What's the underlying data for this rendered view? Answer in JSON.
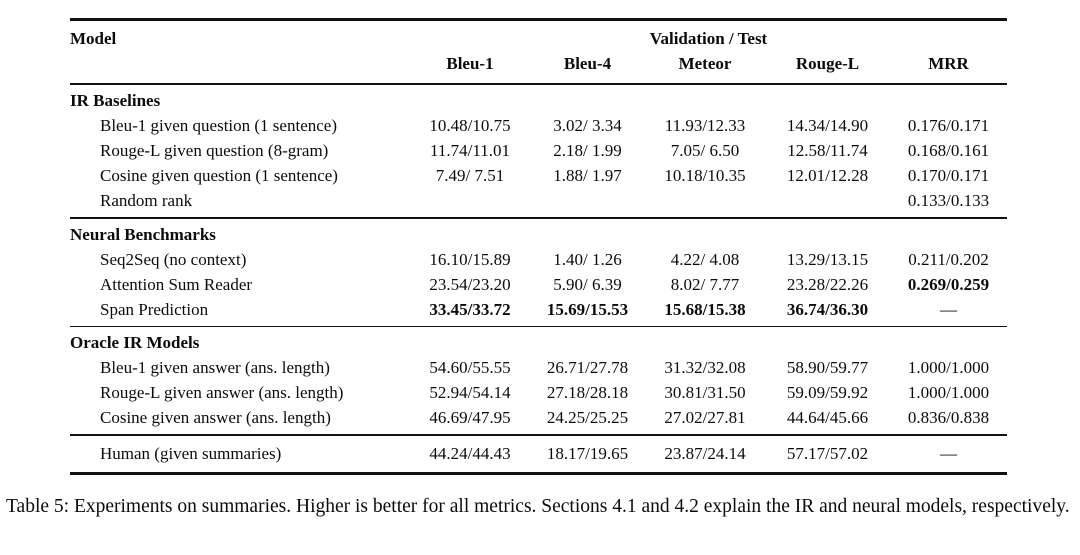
{
  "table": {
    "header": {
      "model_label": "Model",
      "group_label": "Validation / Test",
      "metrics": [
        "Bleu-1",
        "Bleu-4",
        "Meteor",
        "Rouge-L",
        "MRR"
      ]
    },
    "sections": [
      {
        "title": "IR Baselines",
        "rows": [
          {
            "model": "Bleu-1 given question (1 sentence)",
            "values": [
              "10.48/10.75",
              "3.02/ 3.34",
              "11.93/12.33",
              "14.34/14.90",
              "0.176/0.171"
            ]
          },
          {
            "model": "Rouge-L given question (8-gram)",
            "values": [
              "11.74/11.01",
              "2.18/ 1.99",
              "7.05/ 6.50",
              "12.58/11.74",
              "0.168/0.161"
            ]
          },
          {
            "model": "Cosine given question (1 sentence)",
            "values": [
              "7.49/ 7.51",
              "1.88/ 1.97",
              "10.18/10.35",
              "12.01/12.28",
              "0.170/0.171"
            ]
          },
          {
            "model": "Random rank",
            "values": [
              "",
              "",
              "",
              "",
              "0.133/0.133"
            ]
          }
        ]
      },
      {
        "title": "Neural Benchmarks",
        "rows": [
          {
            "model": "Seq2Seq (no context)",
            "values": [
              "16.10/15.89",
              "1.40/ 1.26",
              "4.22/ 4.08",
              "13.29/13.15",
              "0.211/0.202"
            ]
          },
          {
            "model": "Attention Sum Reader",
            "values": [
              "23.54/23.20",
              "5.90/ 6.39",
              "8.02/ 7.77",
              "23.28/22.26",
              "0.269/0.259"
            ]
          },
          {
            "model": "Span Prediction",
            "values": [
              "33.45/33.72",
              "15.69/15.53",
              "15.68/15.38",
              "36.74/36.30",
              "—"
            ]
          }
        ]
      },
      {
        "title": "Oracle IR Models",
        "rows": [
          {
            "model": "Bleu-1 given answer (ans. length)",
            "values": [
              "54.60/55.55",
              "26.71/27.78",
              "31.32/32.08",
              "58.90/59.77",
              "1.000/1.000"
            ]
          },
          {
            "model": "Rouge-L given answer (ans. length)",
            "values": [
              "52.94/54.14",
              "27.18/28.18",
              "30.81/31.50",
              "59.09/59.92",
              "1.000/1.000"
            ]
          },
          {
            "model": "Cosine given answer (ans. length)",
            "values": [
              "46.69/47.95",
              "24.25/25.25",
              "27.02/27.81",
              "44.64/45.66",
              "0.836/0.838"
            ]
          }
        ]
      }
    ],
    "footer_row": {
      "model": "Human (given summaries)",
      "values": [
        "44.24/44.43",
        "18.17/19.65",
        "23.87/24.14",
        "57.17/57.02",
        "—"
      ]
    }
  },
  "caption": "Table 5: Experiments on summaries. Higher is better for all metrics. Sections 4.1 and 4.2 explain the IR and neural models, respectively."
}
